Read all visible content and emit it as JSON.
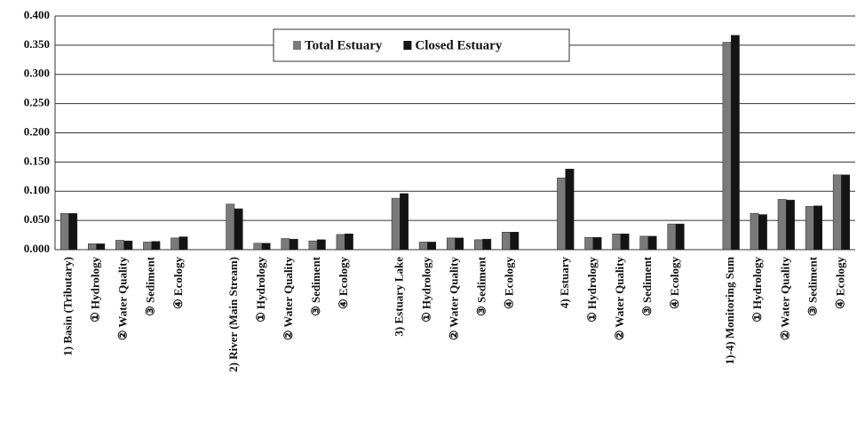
{
  "chart_data": {
    "type": "bar",
    "categories": [
      "1) Basin (Tributary)",
      "① Hydrology",
      "② Water Quality",
      "③ Sediment",
      "④ Ecology",
      null,
      "2) River (Main Stream)",
      "① Hydrology",
      "② Water Quality",
      "③ Sediment",
      "④ Ecology",
      null,
      "3) Estuary Lake",
      "① Hydrology",
      "② Water Quality",
      "③ Sediment",
      "④ Ecology",
      null,
      "4) Estuary",
      "① Hydrology",
      "② Water Quality",
      "③ Sediment",
      "④ Ecology",
      null,
      "1)-4) Monitoring Sum",
      "① Hydrology",
      "② Water Quality",
      "③ Sediment",
      "④ Ecology"
    ],
    "series": [
      {
        "name": "Total Estuary",
        "color": "#7a7a7a",
        "values": [
          0.062,
          0.01,
          0.016,
          0.013,
          0.02,
          null,
          0.078,
          0.011,
          0.019,
          0.015,
          0.026,
          null,
          0.088,
          0.013,
          0.02,
          0.017,
          0.03,
          null,
          0.123,
          0.021,
          0.027,
          0.023,
          0.044,
          null,
          0.355,
          0.062,
          0.086,
          0.074,
          0.128
        ]
      },
      {
        "name": "Closed Estuary",
        "color": "#141414",
        "values": [
          0.062,
          0.01,
          0.015,
          0.014,
          0.022,
          null,
          0.07,
          0.011,
          0.018,
          0.017,
          0.027,
          null,
          0.096,
          0.013,
          0.02,
          0.018,
          0.03,
          null,
          0.138,
          0.021,
          0.027,
          0.023,
          0.044,
          null,
          0.367,
          0.06,
          0.085,
          0.075,
          0.128
        ]
      }
    ],
    "ylim": [
      0,
      0.4
    ],
    "yticks": [
      {
        "value": 0,
        "label": "0.000"
      },
      {
        "value": 0.05,
        "label": "0.050"
      },
      {
        "value": 0.1,
        "label": "0.100"
      },
      {
        "value": 0.15,
        "label": "0.150"
      },
      {
        "value": 0.2,
        "label": "0.200"
      },
      {
        "value": 0.25,
        "label": "0.250"
      },
      {
        "value": 0.3,
        "label": "0.300"
      },
      {
        "value": 0.35,
        "label": "0.350"
      },
      {
        "value": 0.4,
        "label": "0.400"
      }
    ],
    "grid": true,
    "legend": "top"
  }
}
